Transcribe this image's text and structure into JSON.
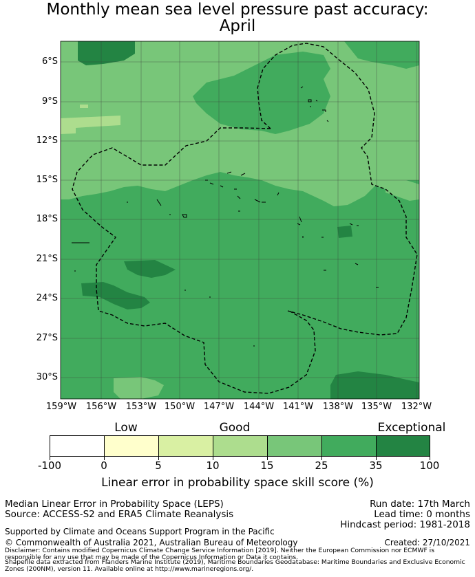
{
  "title": {
    "line1": "Monthly mean sea level pressure past accuracy:",
    "line2": "April"
  },
  "map": {
    "latitude_labels": [
      "6°S",
      "9°S",
      "12°S",
      "15°S",
      "18°S",
      "21°S",
      "24°S",
      "27°S",
      "30°S"
    ],
    "latitude_values": [
      -6,
      -9,
      -12,
      -15,
      -18,
      -21,
      -24,
      -27,
      -30
    ],
    "longitude_labels": [
      "159°W",
      "156°W",
      "153°W",
      "150°W",
      "147°W",
      "144°W",
      "141°W",
      "138°W",
      "135°W",
      "132°W"
    ],
    "longitude_values": [
      -159,
      -156,
      -153,
      -150,
      -147,
      -144,
      -141,
      -138,
      -135,
      -132
    ],
    "extent": {
      "lon_min": -159,
      "lon_max": -132,
      "lat_min": -31.5,
      "lat_max": -4.5
    },
    "gridlines": true,
    "eez_boundary": "dashed black",
    "land": "small island outlines"
  },
  "colorbar": {
    "category_labels": [
      "Low",
      "Good",
      "Exceptional"
    ],
    "tick_labels": [
      "-100",
      "0",
      "5",
      "10",
      "15",
      "25",
      "35",
      "100"
    ],
    "colors": [
      "#ffffff",
      "#ffffcc",
      "#d9f0a3",
      "#addd8e",
      "#78c679",
      "#41ab5d",
      "#238443"
    ],
    "label": "Linear error in probability space skill score (%)"
  },
  "info": {
    "left_line1": "Median Linear Error in Probability Space (LEPS)",
    "left_line2": "Source: ACCESS-S2 and ERA5 Climate Reanalysis",
    "run_date": "Run date: 17th March",
    "lead_time": "Lead time: 0 months",
    "hindcast": "Hindcast period: 1981-2018",
    "supported_by": "Supported by Climate and Oceans Support Program in the Pacific",
    "copyright": "© Commonwealth of Australia 2021, Australian Bureau of Meteorology",
    "created": "Created: 27/10/2021",
    "disclaimer_line1": "Disclaimer: Contains modified Copernicus Climate Change Service Information [2019]. Neither the European Commission nor ECMWF is",
    "disclaimer_line2": "responsible for any use that may be made of the Copernicus Information or Data it contains.",
    "disclaimer_line3": "Shapefile data extracted from Flanders Marine Institute (2019), Maritime Boundaries Geodatabase: Maritime Boundaries and Exclusive Economic",
    "disclaimer_line4": "Zones (200NM), version 11. Available online at http://www.marineregions.org/."
  }
}
